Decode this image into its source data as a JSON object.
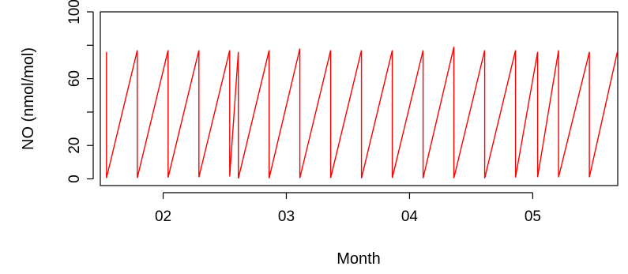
{
  "chart_data": {
    "type": "line",
    "title": "",
    "xlabel": "Month",
    "ylabel": "NO (nmol/mol)",
    "xlim": [
      1.49,
      5.69
    ],
    "ylim": [
      -4,
      100
    ],
    "x_ticks": [
      {
        "value": 2,
        "label": "02"
      },
      {
        "value": 3,
        "label": "03"
      },
      {
        "value": 4,
        "label": "04"
      },
      {
        "value": 5,
        "label": "05"
      }
    ],
    "y_ticks": [
      {
        "value": 0,
        "label": "0"
      },
      {
        "value": 20,
        "label": "20"
      },
      {
        "value": 40,
        "label": ""
      },
      {
        "value": 60,
        "label": "60"
      },
      {
        "value": 80,
        "label": ""
      },
      {
        "value": 100,
        "label": "100"
      }
    ],
    "series": [
      {
        "color": "#ff0000",
        "x": [
          1.54,
          1.54,
          1.79,
          1.79,
          2.04,
          2.04,
          2.29,
          2.29,
          2.54,
          2.54,
          2.61,
          2.61,
          2.86,
          2.86,
          3.11,
          3.11,
          3.36,
          3.36,
          3.61,
          3.61,
          3.86,
          3.86,
          4.11,
          4.11,
          4.36,
          4.36,
          4.61,
          4.61,
          4.86,
          4.86,
          5.04,
          5.04,
          5.21,
          5.21,
          5.46,
          5.46,
          5.69
        ],
        "y": [
          76,
          0.5,
          77,
          0.6,
          77,
          0.8,
          77,
          1,
          77,
          1.5,
          76,
          0.3,
          77,
          0.4,
          78,
          0.5,
          77,
          0.6,
          77,
          0.4,
          77,
          0.6,
          77,
          0.4,
          79,
          0.5,
          77,
          0.4,
          77,
          0.8,
          76,
          1,
          77,
          1,
          76,
          1,
          77
        ]
      }
    ]
  }
}
